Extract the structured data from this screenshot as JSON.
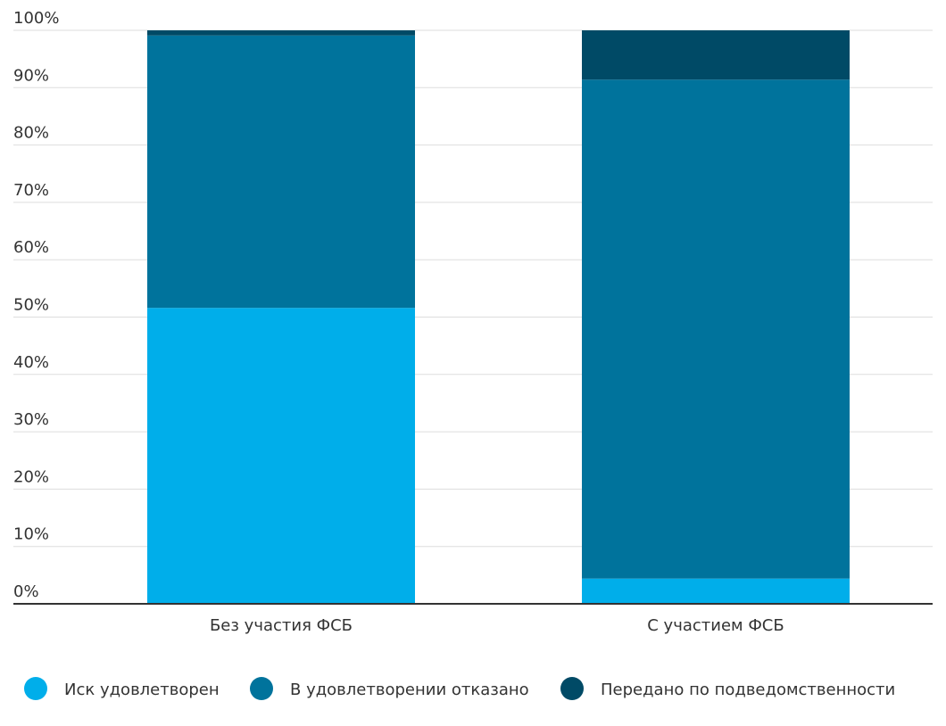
{
  "chart_data": {
    "type": "stacked_bar",
    "categories": [
      "Без участия ФСБ",
      "С участием ФСБ"
    ],
    "series": [
      {
        "name": "Иск удовлетворен",
        "color": "#00aeea",
        "values": [
          51.6,
          4.4
        ]
      },
      {
        "name": "В удовлетворении отказано",
        "color": "#00739c",
        "values": [
          47.5,
          87.0
        ]
      },
      {
        "name": "Передано по подведомственности",
        "color": "#004a66",
        "values": [
          0.9,
          8.6
        ]
      }
    ],
    "ylim": [
      0,
      100
    ],
    "yticks": [
      {
        "value": 0,
        "label": "0%"
      },
      {
        "value": 10,
        "label": "10%"
      },
      {
        "value": 20,
        "label": "20%"
      },
      {
        "value": 30,
        "label": "30%"
      },
      {
        "value": 40,
        "label": "40%"
      },
      {
        "value": 50,
        "label": "50%"
      },
      {
        "value": 60,
        "label": "60%"
      },
      {
        "value": 70,
        "label": "70%"
      },
      {
        "value": 80,
        "label": "80%"
      },
      {
        "value": 90,
        "label": "90%"
      },
      {
        "value": 100,
        "label": "100%"
      }
    ],
    "grid": true,
    "legend": "bottom"
  }
}
